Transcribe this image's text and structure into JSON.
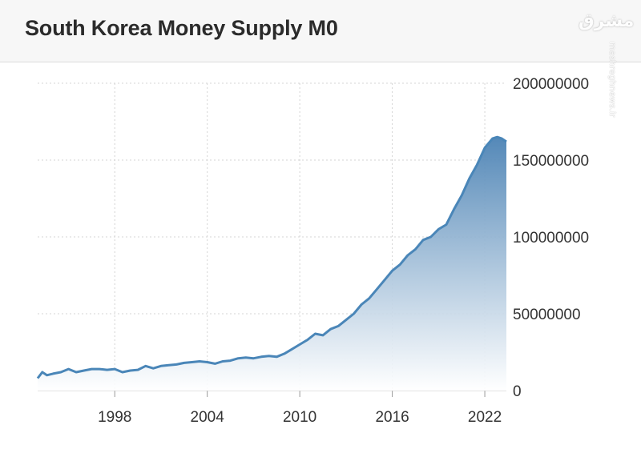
{
  "header": {
    "title": "South Korea Money Supply M0"
  },
  "watermark": {
    "logo_text": "مشرق",
    "site_text": "mashreghnews.ir"
  },
  "colors": {
    "line": "#4a86b8",
    "fill_top": "#4b82b4",
    "fill_bottom": "#ffffff",
    "grid": "#d4d4d4",
    "text": "#333333"
  },
  "chart_data": {
    "type": "area",
    "title": "South Korea Money Supply M0",
    "xlabel": "",
    "ylabel": "",
    "xlim": [
      1993.0,
      2023.4
    ],
    "ylim": [
      0,
      200000000
    ],
    "x_ticks": [
      1998,
      2004,
      2010,
      2016,
      2022
    ],
    "y_ticks": [
      0,
      50000000,
      100000000,
      150000000,
      200000000
    ],
    "y_tick_labels": [
      "0",
      "50000000",
      "100000000",
      "150000000",
      "200000000"
    ],
    "grid": true,
    "y_axis_side": "right",
    "series": [
      {
        "name": "Money Supply M0",
        "x": [
          1993.0,
          1993.3,
          1993.6,
          1994.0,
          1994.5,
          1995.0,
          1995.5,
          1996.0,
          1996.5,
          1997.0,
          1997.5,
          1998.0,
          1998.5,
          1999.0,
          1999.5,
          2000.0,
          2000.5,
          2001.0,
          2001.5,
          2002.0,
          2002.5,
          2003.0,
          2003.5,
          2004.0,
          2004.5,
          2005.0,
          2005.5,
          2006.0,
          2006.5,
          2007.0,
          2007.5,
          2008.0,
          2008.5,
          2009.0,
          2009.5,
          2010.0,
          2010.5,
          2011.0,
          2011.5,
          2012.0,
          2012.5,
          2013.0,
          2013.5,
          2014.0,
          2014.5,
          2015.0,
          2015.5,
          2016.0,
          2016.5,
          2017.0,
          2017.5,
          2018.0,
          2018.5,
          2019.0,
          2019.5,
          2020.0,
          2020.5,
          2021.0,
          2021.5,
          2022.0,
          2022.5,
          2022.8,
          2023.1,
          2023.4
        ],
        "values": [
          8000000,
          12000000,
          10000000,
          11000000,
          12000000,
          14000000,
          12000000,
          13000000,
          14000000,
          14000000,
          13500000,
          14000000,
          12000000,
          13000000,
          13500000,
          16000000,
          14500000,
          16000000,
          16500000,
          17000000,
          18000000,
          18500000,
          19000000,
          18500000,
          17500000,
          19000000,
          19500000,
          21000000,
          21500000,
          21000000,
          22000000,
          22500000,
          22000000,
          24000000,
          27000000,
          30000000,
          33000000,
          37000000,
          36000000,
          40000000,
          42000000,
          46000000,
          50000000,
          56000000,
          60000000,
          66000000,
          72000000,
          78000000,
          82000000,
          88000000,
          92000000,
          98000000,
          100000000,
          105000000,
          108000000,
          118000000,
          127000000,
          138000000,
          147000000,
          158000000,
          164000000,
          165000000,
          164000000,
          162000000
        ]
      }
    ]
  }
}
